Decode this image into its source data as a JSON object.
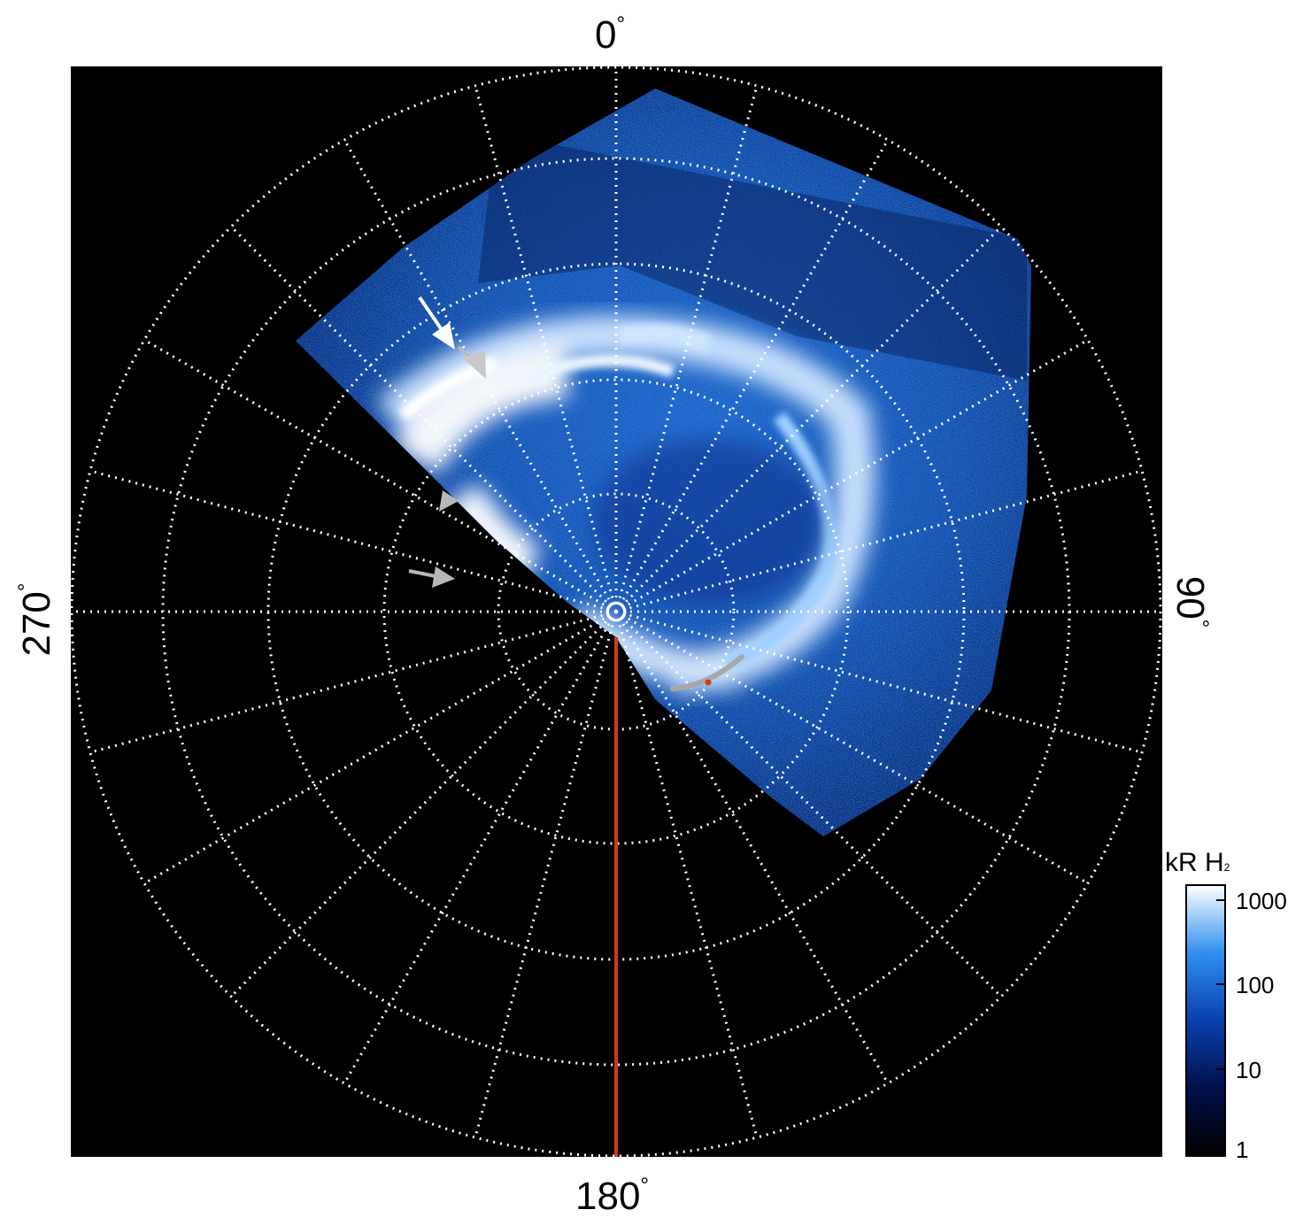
{
  "labels": {
    "top": "0",
    "bottom": "180",
    "left": "270",
    "right": "90",
    "degree": "°"
  },
  "colorbar": {
    "title": "kR H",
    "title_sub": "2",
    "ticks": [
      "1000",
      "100",
      "10",
      "1"
    ]
  },
  "colors": {
    "background": "#000000",
    "grid": "#ffffff",
    "meridian_line": "#d23a12",
    "arrow_white": "#ffffff",
    "arrow_gray": "#b8b8b8",
    "aurora_dark": "#001a66",
    "aurora_mid": "#1a6ee0",
    "aurora_bright": "#e8f4ff"
  }
}
